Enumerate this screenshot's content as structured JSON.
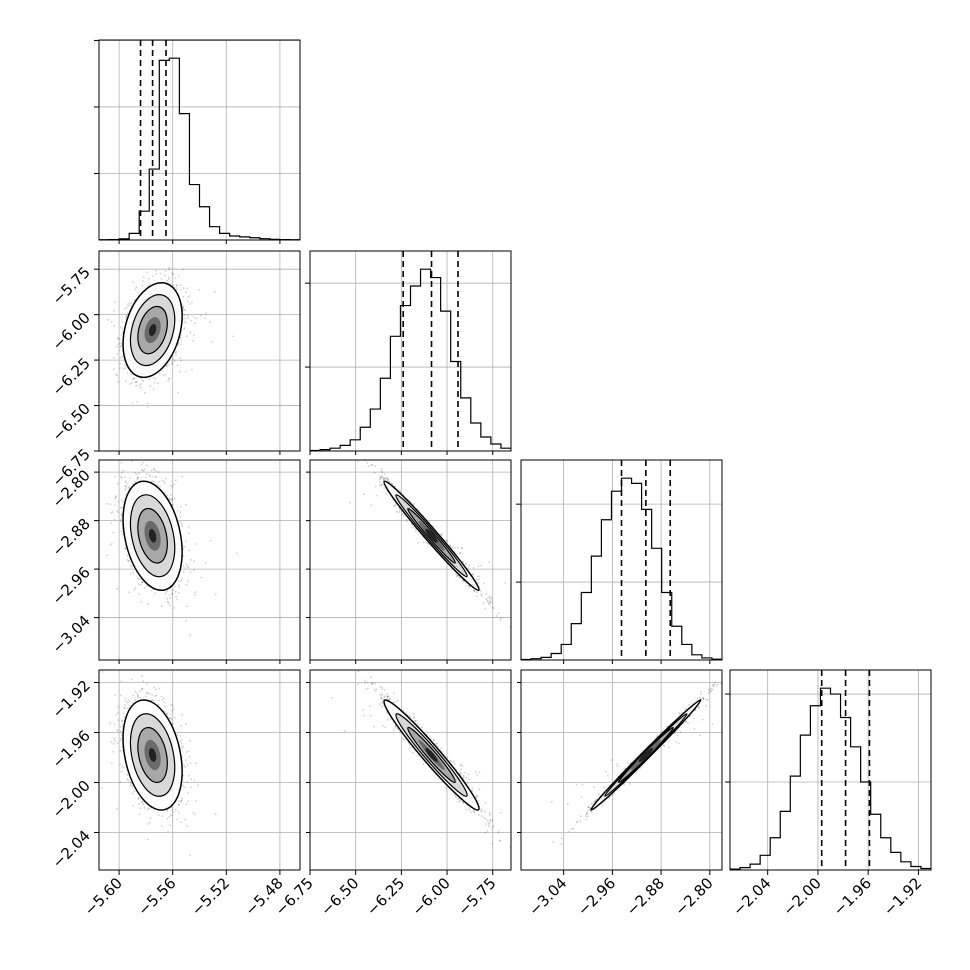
{
  "chart_data": {
    "type": "corner",
    "parameters": 4,
    "colors": {
      "line": "#000000",
      "grid": "#b0b0b0",
      "points": "#000000"
    },
    "grid": true,
    "x_ticks": [
      {
        "values": [
          -5.6,
          -5.56,
          -5.52,
          -5.48
        ],
        "labels": [
          "−5.60",
          "−5.56",
          "−5.52",
          "−5.48"
        ]
      },
      {
        "values": [
          -6.75,
          -6.5,
          -6.25,
          -6.0,
          -5.75
        ],
        "labels": [
          "−6.75",
          "−6.50",
          "−6.25",
          "−6.00",
          "−5.75"
        ]
      },
      {
        "values": [
          -3.04,
          -2.96,
          -2.88,
          -2.8
        ],
        "labels": [
          "−3.04",
          "−2.96",
          "−2.88",
          "−2.80"
        ]
      },
      {
        "values": [
          -2.04,
          -2.0,
          -1.96,
          -1.92
        ],
        "labels": [
          "−2.04",
          "−2.00",
          "−1.96",
          "−1.92"
        ]
      }
    ],
    "y_ticks": [
      null,
      {
        "values": [
          -5.75,
          -6.0,
          -6.25,
          -6.5,
          -6.75
        ],
        "labels": [
          "−5.75",
          "−6.00",
          "−6.25",
          "−6.50",
          "−6.75"
        ]
      },
      {
        "values": [
          -2.8,
          -2.88,
          -2.96,
          -3.04
        ],
        "labels": [
          "−2.80",
          "−2.88",
          "−2.96",
          "−3.04"
        ]
      },
      {
        "values": [
          -1.92,
          -1.96,
          -2.0,
          -2.04
        ],
        "labels": [
          "−1.92",
          "−1.96",
          "−2.00",
          "−2.04"
        ]
      }
    ],
    "ranges": [
      [
        -5.615,
        -5.465
      ],
      [
        -6.75,
        -5.65
      ],
      [
        -3.11,
        -2.78
      ],
      [
        -2.07,
        -1.91
      ]
    ],
    "quantiles": [
      [
        -5.584,
        -5.575,
        -5.565
      ],
      [
        -6.24,
        -6.085,
        -5.94
      ],
      [
        -2.945,
        -2.905,
        -2.865
      ],
      [
        -1.997,
        -1.978,
        -1.959
      ]
    ],
    "histograms": [
      {
        "edges_start": -5.615,
        "edges_end": -5.465,
        "counts": [
          1,
          2,
          5,
          30,
          130,
          320,
          810,
          820,
          570,
          250,
          150,
          60,
          30,
          18,
          14,
          10,
          6,
          3,
          2,
          1
        ]
      },
      {
        "edges_start": -6.75,
        "edges_end": -5.65,
        "counts": [
          2,
          5,
          10,
          20,
          40,
          85,
          150,
          260,
          410,
          520,
          590,
          650,
          620,
          500,
          320,
          190,
          100,
          50,
          25,
          10
        ]
      },
      {
        "edges_start": -3.11,
        "edges_end": -2.78,
        "counts": [
          2,
          5,
          10,
          25,
          60,
          140,
          260,
          400,
          540,
          650,
          700,
          680,
          580,
          430,
          260,
          130,
          60,
          20,
          8,
          3
        ]
      },
      {
        "edges_start": -2.07,
        "edges_end": -1.91,
        "counts": [
          3,
          8,
          20,
          50,
          110,
          200,
          320,
          460,
          560,
          620,
          600,
          520,
          420,
          300,
          190,
          110,
          60,
          28,
          12,
          5
        ]
      }
    ],
    "pairs": [
      {
        "row": 1,
        "col": 0,
        "mean": [
          -5.575,
          -6.085
        ],
        "sd": [
          0.011,
          0.13
        ],
        "corr": 0.3
      },
      {
        "row": 2,
        "col": 0,
        "mean": [
          -5.575,
          -2.905
        ],
        "sd": [
          0.011,
          0.045
        ],
        "corr": -0.3
      },
      {
        "row": 2,
        "col": 1,
        "mean": [
          -6.085,
          -2.905
        ],
        "sd": [
          0.13,
          0.045
        ],
        "corr": -0.985
      },
      {
        "row": 3,
        "col": 0,
        "mean": [
          -5.575,
          -1.978
        ],
        "sd": [
          0.011,
          0.022
        ],
        "corr": -0.3
      },
      {
        "row": 3,
        "col": 1,
        "mean": [
          -6.085,
          -1.978
        ],
        "sd": [
          0.13,
          0.022
        ],
        "corr": -0.97
      },
      {
        "row": 3,
        "col": 2,
        "mean": [
          -2.905,
          -1.978
        ],
        "sd": [
          0.045,
          0.022
        ],
        "corr": 0.995
      }
    ]
  }
}
